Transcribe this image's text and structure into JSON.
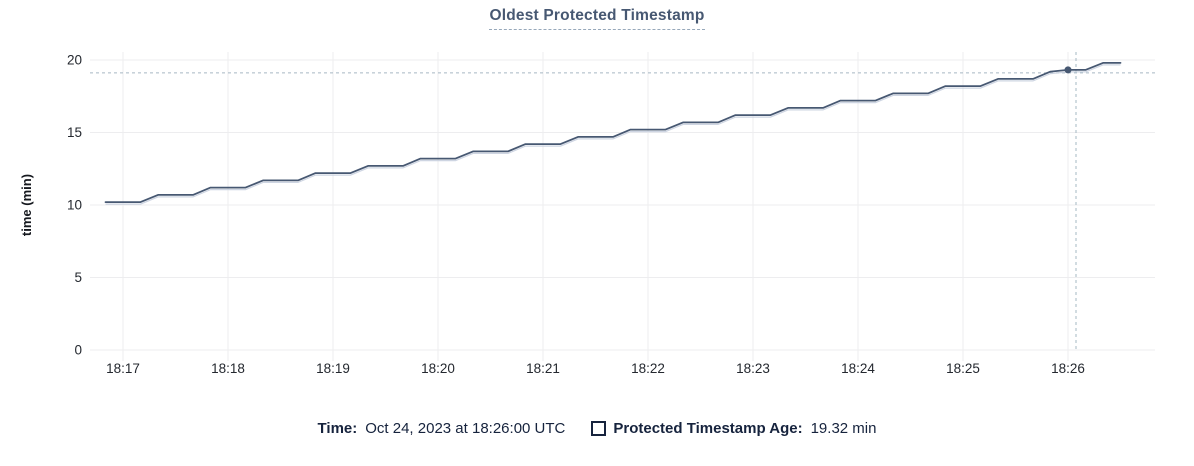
{
  "chart_data": {
    "type": "line",
    "title": "Oldest Protected Timestamp",
    "xlabel": "",
    "ylabel": "time (min)",
    "ylim": [
      0,
      20
    ],
    "y_ticks": [
      0,
      5,
      10,
      15,
      20
    ],
    "x_tick_labels": [
      "18:17",
      "18:18",
      "18:19",
      "18:20",
      "18:21",
      "18:22",
      "18:23",
      "18:24",
      "18:25",
      "18:26"
    ],
    "grid": true,
    "legend_position": "bottom",
    "colors": {
      "line": "#475872",
      "crosshair": "#a6b8c3",
      "gridline": "#ededef",
      "axis_text": "#24282f",
      "title_text": "#475872",
      "legend_text": "#16233d"
    },
    "series": [
      {
        "name": "Protected Timestamp Age",
        "color": "#475872",
        "points": [
          [
            "18:16:50",
            10.2
          ],
          [
            "18:17:00",
            10.2
          ],
          [
            "18:17:10",
            10.2
          ],
          [
            "18:17:20",
            10.7
          ],
          [
            "18:17:30",
            10.7
          ],
          [
            "18:17:40",
            10.7
          ],
          [
            "18:17:50",
            11.2
          ],
          [
            "18:18:00",
            11.2
          ],
          [
            "18:18:10",
            11.2
          ],
          [
            "18:18:20",
            11.7
          ],
          [
            "18:18:30",
            11.7
          ],
          [
            "18:18:40",
            11.7
          ],
          [
            "18:18:50",
            12.2
          ],
          [
            "18:19:00",
            12.2
          ],
          [
            "18:19:10",
            12.2
          ],
          [
            "18:19:20",
            12.7
          ],
          [
            "18:19:30",
            12.7
          ],
          [
            "18:19:40",
            12.7
          ],
          [
            "18:19:50",
            13.2
          ],
          [
            "18:20:00",
            13.2
          ],
          [
            "18:20:10",
            13.2
          ],
          [
            "18:20:20",
            13.7
          ],
          [
            "18:20:30",
            13.7
          ],
          [
            "18:20:40",
            13.7
          ],
          [
            "18:20:50",
            14.2
          ],
          [
            "18:21:00",
            14.2
          ],
          [
            "18:21:10",
            14.2
          ],
          [
            "18:21:20",
            14.7
          ],
          [
            "18:21:30",
            14.7
          ],
          [
            "18:21:40",
            14.7
          ],
          [
            "18:21:50",
            15.2
          ],
          [
            "18:22:00",
            15.2
          ],
          [
            "18:22:10",
            15.2
          ],
          [
            "18:22:20",
            15.7
          ],
          [
            "18:22:30",
            15.7
          ],
          [
            "18:22:40",
            15.7
          ],
          [
            "18:22:50",
            16.2
          ],
          [
            "18:23:00",
            16.2
          ],
          [
            "18:23:10",
            16.2
          ],
          [
            "18:23:20",
            16.7
          ],
          [
            "18:23:30",
            16.7
          ],
          [
            "18:23:40",
            16.7
          ],
          [
            "18:23:50",
            17.2
          ],
          [
            "18:24:00",
            17.2
          ],
          [
            "18:24:10",
            17.2
          ],
          [
            "18:24:20",
            17.7
          ],
          [
            "18:24:30",
            17.7
          ],
          [
            "18:24:40",
            17.7
          ],
          [
            "18:24:50",
            18.2
          ],
          [
            "18:25:00",
            18.2
          ],
          [
            "18:25:10",
            18.2
          ],
          [
            "18:25:20",
            18.7
          ],
          [
            "18:25:30",
            18.7
          ],
          [
            "18:25:40",
            18.7
          ],
          [
            "18:25:50",
            19.2
          ],
          [
            "18:26:00",
            19.32
          ],
          [
            "18:26:10",
            19.32
          ],
          [
            "18:26:20",
            19.8
          ],
          [
            "18:26:30",
            19.8
          ]
        ]
      }
    ],
    "highlight": {
      "t": "18:26:00",
      "v": 19.32
    }
  },
  "legend": {
    "time_label": "Time:",
    "time_value": "Oct 24, 2023 at 18:26:00 UTC",
    "series_label": "Protected Timestamp Age:",
    "series_value": "19.32 min"
  }
}
